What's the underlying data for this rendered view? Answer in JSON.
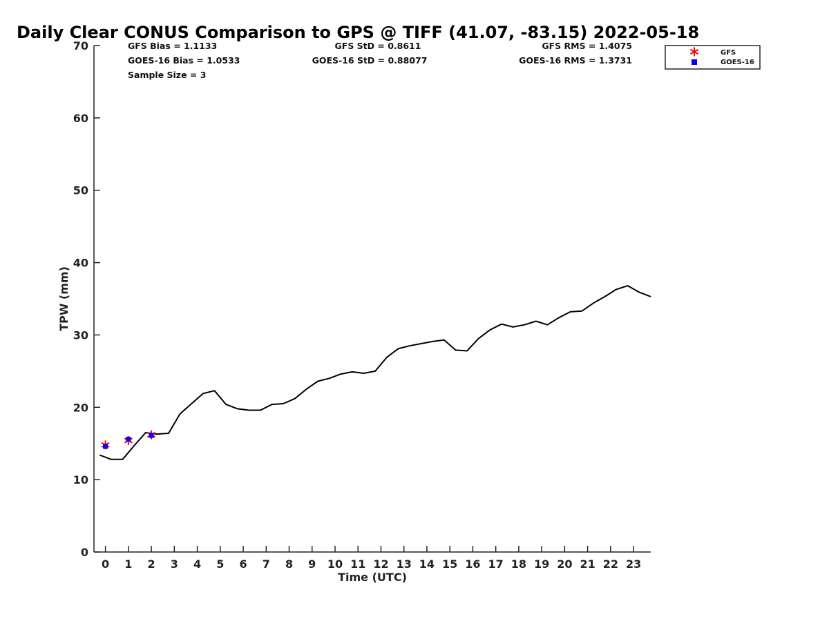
{
  "chart_data": {
    "type": "line",
    "title": "Daily Clear CONUS Comparison to GPS @ TIFF (41.07, -83.15) 2022-05-18",
    "xlabel": "Time (UTC)",
    "ylabel": "TPW (mm)",
    "xlim": [
      -0.5,
      23.75
    ],
    "ylim": [
      0,
      70
    ],
    "x_ticks": [
      "0",
      "1",
      "2",
      "3",
      "4",
      "5",
      "6",
      "7",
      "8",
      "9",
      "10",
      "11",
      "12",
      "13",
      "14",
      "15",
      "16",
      "17",
      "18",
      "19",
      "20",
      "21",
      "22",
      "23"
    ],
    "y_ticks": [
      "0",
      "10",
      "20",
      "30",
      "40",
      "50",
      "60",
      "70"
    ],
    "grid": false,
    "legend_position": "top-right",
    "stats": [
      {
        "text": "GFS Bias = 1.1133"
      },
      {
        "text": "GFS StD = 0.8611"
      },
      {
        "text": "GFS RMS = 1.4075"
      },
      {
        "text": "GOES-16 Bias = 1.0533"
      },
      {
        "text": "GOES-16 StD = 0.88077"
      },
      {
        "text": "GOES-16 RMS = 1.3731"
      },
      {
        "text": "Sample Size = 3"
      }
    ],
    "series": [
      {
        "marker": "line",
        "color": "#000000",
        "x": [
          -0.25,
          0.25,
          0.75,
          1.25,
          1.75,
          2.25,
          2.75,
          3.25,
          3.75,
          4.25,
          4.75,
          5.25,
          5.75,
          6.25,
          6.75,
          7.25,
          7.75,
          8.25,
          8.75,
          9.25,
          9.75,
          10.25,
          10.75,
          11.25,
          11.75,
          12.25,
          12.75,
          13.25,
          13.75,
          14.25,
          14.75,
          15.25,
          15.75,
          16.25,
          16.75,
          17.25,
          17.75,
          18.25,
          18.75,
          19.25,
          19.75,
          20.25,
          20.75,
          21.25,
          21.75,
          22.25,
          22.75,
          23.25,
          23.75
        ],
        "values": [
          13.4,
          12.8,
          12.8,
          14.7,
          16.5,
          16.3,
          16.4,
          19.1,
          20.5,
          21.9,
          22.3,
          20.4,
          19.8,
          19.6,
          19.6,
          20.4,
          20.5,
          21.2,
          22.5,
          23.6,
          24.0,
          24.6,
          24.9,
          24.7,
          25.0,
          26.9,
          28.1,
          28.5,
          28.8,
          29.1,
          29.3,
          27.9,
          27.8,
          29.5,
          30.7,
          31.5,
          31.1,
          31.4,
          31.9,
          31.4,
          32.4,
          33.2,
          33.3,
          34.4,
          35.3,
          36.3,
          36.8,
          35.9,
          35.3
        ]
      },
      {
        "name": "GFS",
        "marker": "asterisk",
        "color": "#ff0000",
        "x": [
          0,
          1,
          2
        ],
        "values": [
          14.8,
          15.4,
          16.2
        ]
      },
      {
        "name": "GOES-16",
        "marker": "square",
        "color": "#0000ff",
        "x": [
          0,
          1,
          2
        ],
        "values": [
          14.6,
          15.6,
          16.1
        ]
      }
    ]
  }
}
